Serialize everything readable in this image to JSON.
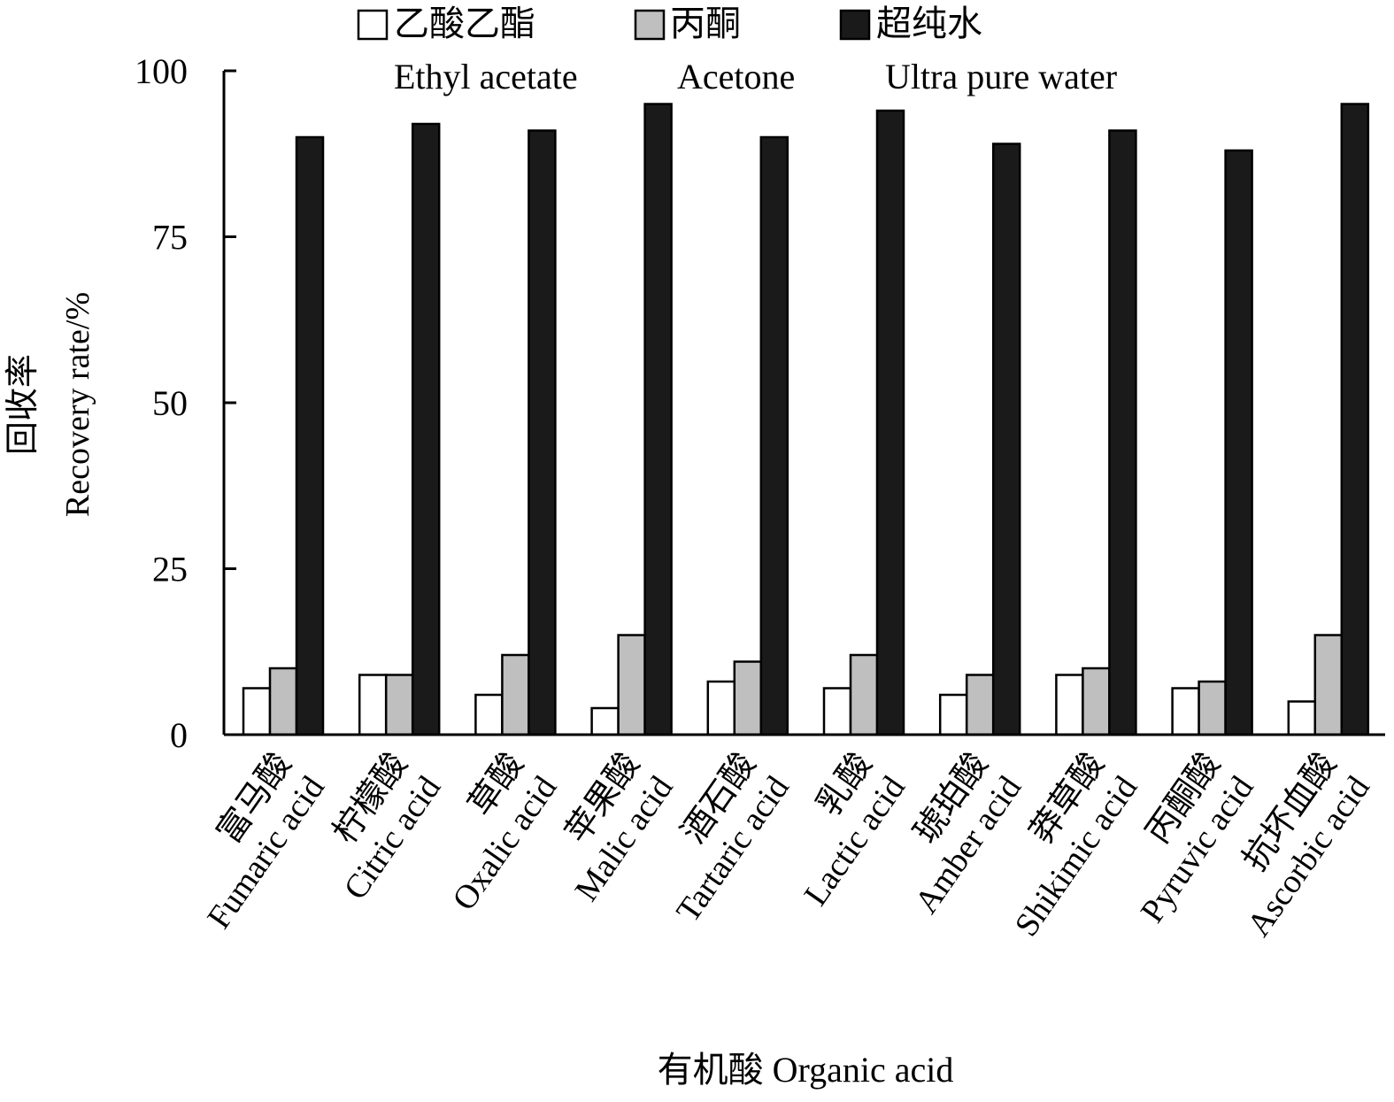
{
  "chart_data": {
    "type": "bar",
    "title": "",
    "xlabel": "有机酸 Organic acid",
    "ylabel_cn": "回收率",
    "ylabel": "Recovery rate/%",
    "ylim": [
      0,
      100
    ],
    "yticks": [
      "0",
      "25",
      "50",
      "75",
      "100"
    ],
    "grid": false,
    "legend_position": "top",
    "categories": [
      {
        "cn": "富马酸",
        "en": "Fumaric acid"
      },
      {
        "cn": "柠檬酸",
        "en": "Citric acid"
      },
      {
        "cn": "草酸",
        "en": "Oxalic acid"
      },
      {
        "cn": "苹果酸",
        "en": "Malic acid"
      },
      {
        "cn": "酒石酸",
        "en": "Tartaric acid"
      },
      {
        "cn": "乳酸",
        "en": "Lactic acid"
      },
      {
        "cn": "琥珀酸",
        "en": "Amber acid"
      },
      {
        "cn": "莽草酸",
        "en": "Shikimic acid"
      },
      {
        "cn": "丙酮酸",
        "en": "Pyruvic acid"
      },
      {
        "cn": "抗坏血酸",
        "en": "Ascorbic acid"
      }
    ],
    "series": [
      {
        "name": "乙酸乙酯",
        "name_en": "Ethyl acetate",
        "color": "#ffffff",
        "values": [
          7,
          9,
          6,
          4,
          8,
          7,
          6,
          9,
          7,
          5
        ]
      },
      {
        "name": "丙酮",
        "name_en": "Acetone",
        "color": "#bfbfbf",
        "values": [
          10,
          9,
          12,
          15,
          11,
          12,
          9,
          10,
          8,
          15
        ]
      },
      {
        "name": "超纯水",
        "name_en": "Ultra pure water",
        "color": "#1a1a1a",
        "values": [
          90,
          92,
          91,
          95,
          90,
          94,
          89,
          91,
          88,
          95
        ]
      }
    ]
  }
}
